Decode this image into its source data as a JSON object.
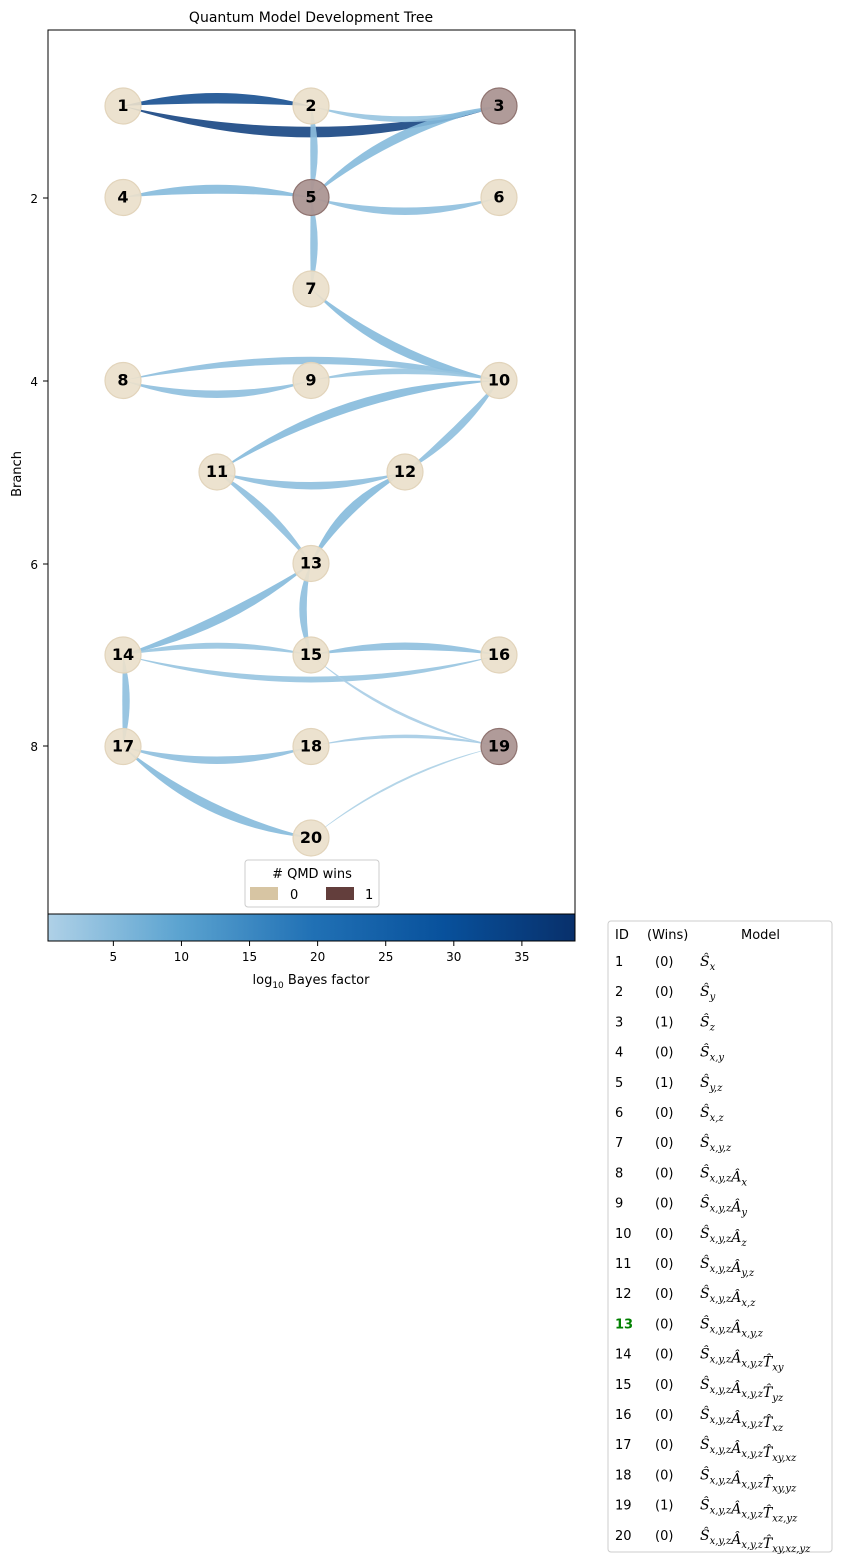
{
  "title": "Quantum Model Development Tree",
  "y_axis": {
    "label": "Branch",
    "ticks": [
      "2",
      "4",
      "6",
      "8"
    ]
  },
  "colorbar": {
    "label_prefix": "log",
    "label_subscript": "10",
    "label_suffix": " Bayes factor",
    "ticks": [
      "5",
      "10",
      "15",
      "20",
      "25",
      "30",
      "35"
    ],
    "range": [
      0.2,
      38.9
    ],
    "colormap": [
      "#afd1e7",
      "#5ba3d0",
      "#2171b5",
      "#08519c",
      "#08306b"
    ]
  },
  "legend": {
    "title": "# QMD wins",
    "items": [
      {
        "label": "0",
        "color": "#d7c5a3"
      },
      {
        "label": "1",
        "color": "#633e3c"
      }
    ]
  },
  "colors": {
    "node_0": "#eadfcb",
    "node_1": "#ac9694",
    "highlight": "#008000"
  },
  "nodes": [
    {
      "id": "1",
      "branch": 1,
      "column": 1,
      "wins": 0
    },
    {
      "id": "2",
      "branch": 1,
      "column": 2,
      "wins": 0
    },
    {
      "id": "3",
      "branch": 1,
      "column": 3,
      "wins": 1
    },
    {
      "id": "4",
      "branch": 2,
      "column": 1,
      "wins": 0
    },
    {
      "id": "5",
      "branch": 2,
      "column": 2,
      "wins": 1
    },
    {
      "id": "6",
      "branch": 2,
      "column": 3,
      "wins": 0
    },
    {
      "id": "7",
      "branch": 3,
      "column": 2,
      "wins": 0
    },
    {
      "id": "8",
      "branch": 4,
      "column": 1,
      "wins": 0
    },
    {
      "id": "9",
      "branch": 4,
      "column": 2,
      "wins": 0
    },
    {
      "id": "10",
      "branch": 4,
      "column": 3,
      "wins": 0
    },
    {
      "id": "11",
      "branch": 5,
      "column": 1.5,
      "wins": 0
    },
    {
      "id": "12",
      "branch": 5,
      "column": 2.5,
      "wins": 0
    },
    {
      "id": "13",
      "branch": 6,
      "column": 2,
      "wins": 0
    },
    {
      "id": "14",
      "branch": 7,
      "column": 1,
      "wins": 0
    },
    {
      "id": "15",
      "branch": 7,
      "column": 2,
      "wins": 0
    },
    {
      "id": "16",
      "branch": 7,
      "column": 3,
      "wins": 0
    },
    {
      "id": "17",
      "branch": 8,
      "column": 1,
      "wins": 0
    },
    {
      "id": "18",
      "branch": 8,
      "column": 2,
      "wins": 0
    },
    {
      "id": "19",
      "branch": 8,
      "column": 3,
      "wins": 1
    },
    {
      "id": "20",
      "branch": 9,
      "column": 2,
      "wins": 0
    }
  ],
  "edges": [
    {
      "from": "1",
      "to": "3",
      "bayes": 36
    },
    {
      "from": "1",
      "to": "2",
      "bayes": 33
    },
    {
      "from": "2",
      "to": "3",
      "bayes": 3
    },
    {
      "from": "2",
      "to": "5",
      "bayes": 4
    },
    {
      "from": "3",
      "to": "5",
      "bayes": 5
    },
    {
      "from": "4",
      "to": "5",
      "bayes": 5
    },
    {
      "from": "5",
      "to": "6",
      "bayes": 4
    },
    {
      "from": "5",
      "to": "7",
      "bayes": 4
    },
    {
      "from": "7",
      "to": "10",
      "bayes": 5
    },
    {
      "from": "8",
      "to": "10",
      "bayes": 4
    },
    {
      "from": "8",
      "to": "9",
      "bayes": 4
    },
    {
      "from": "9",
      "to": "10",
      "bayes": 3
    },
    {
      "from": "10",
      "to": "11",
      "bayes": 5
    },
    {
      "from": "10",
      "to": "12",
      "bayes": 4
    },
    {
      "from": "11",
      "to": "12",
      "bayes": 4
    },
    {
      "from": "11",
      "to": "13",
      "bayes": 4
    },
    {
      "from": "12",
      "to": "13",
      "bayes": 5
    },
    {
      "from": "13",
      "to": "14",
      "bayes": 5
    },
    {
      "from": "13",
      "to": "15",
      "bayes": 4
    },
    {
      "from": "14",
      "to": "15",
      "bayes": 3
    },
    {
      "from": "14",
      "to": "16",
      "bayes": 3
    },
    {
      "from": "15",
      "to": "16",
      "bayes": 4
    },
    {
      "from": "15",
      "to": "19",
      "bayes": 1
    },
    {
      "from": "14",
      "to": "17",
      "bayes": 4
    },
    {
      "from": "17",
      "to": "18",
      "bayes": 4
    },
    {
      "from": "18",
      "to": "19",
      "bayes": 1.5
    },
    {
      "from": "17",
      "to": "20",
      "bayes": 5
    },
    {
      "from": "20",
      "to": "19",
      "bayes": 0.5
    }
  ],
  "table": {
    "headers": {
      "id": "ID",
      "wins": "(Wins)",
      "model": "Model"
    },
    "highlight_id": "13",
    "rows": [
      {
        "id": "1",
        "wins": "(0)",
        "model": [
          [
            "S",
            "x"
          ]
        ]
      },
      {
        "id": "2",
        "wins": "(0)",
        "model": [
          [
            "S",
            "y"
          ]
        ]
      },
      {
        "id": "3",
        "wins": "(1)",
        "model": [
          [
            "S",
            "z"
          ]
        ]
      },
      {
        "id": "4",
        "wins": "(0)",
        "model": [
          [
            "S",
            "x,y"
          ]
        ]
      },
      {
        "id": "5",
        "wins": "(1)",
        "model": [
          [
            "S",
            "y,z"
          ]
        ]
      },
      {
        "id": "6",
        "wins": "(0)",
        "model": [
          [
            "S",
            "x,z"
          ]
        ]
      },
      {
        "id": "7",
        "wins": "(0)",
        "model": [
          [
            "S",
            "x,y,z"
          ]
        ]
      },
      {
        "id": "8",
        "wins": "(0)",
        "model": [
          [
            "S",
            "x,y,z"
          ],
          [
            "A",
            "x"
          ]
        ]
      },
      {
        "id": "9",
        "wins": "(0)",
        "model": [
          [
            "S",
            "x,y,z"
          ],
          [
            "A",
            "y"
          ]
        ]
      },
      {
        "id": "10",
        "wins": "(0)",
        "model": [
          [
            "S",
            "x,y,z"
          ],
          [
            "A",
            "z"
          ]
        ]
      },
      {
        "id": "11",
        "wins": "(0)",
        "model": [
          [
            "S",
            "x,y,z"
          ],
          [
            "A",
            "y,z"
          ]
        ]
      },
      {
        "id": "12",
        "wins": "(0)",
        "model": [
          [
            "S",
            "x,y,z"
          ],
          [
            "A",
            "x,z"
          ]
        ]
      },
      {
        "id": "13",
        "wins": "(0)",
        "model": [
          [
            "S",
            "x,y,z"
          ],
          [
            "A",
            "x,y,z"
          ]
        ]
      },
      {
        "id": "14",
        "wins": "(0)",
        "model": [
          [
            "S",
            "x,y,z"
          ],
          [
            "A",
            "x,y,z"
          ],
          [
            "T",
            "xy"
          ]
        ]
      },
      {
        "id": "15",
        "wins": "(0)",
        "model": [
          [
            "S",
            "x,y,z"
          ],
          [
            "A",
            "x,y,z"
          ],
          [
            "T",
            "yz"
          ]
        ]
      },
      {
        "id": "16",
        "wins": "(0)",
        "model": [
          [
            "S",
            "x,y,z"
          ],
          [
            "A",
            "x,y,z"
          ],
          [
            "T",
            "xz"
          ]
        ]
      },
      {
        "id": "17",
        "wins": "(0)",
        "model": [
          [
            "S",
            "x,y,z"
          ],
          [
            "A",
            "x,y,z"
          ],
          [
            "T",
            "xy,xz"
          ]
        ]
      },
      {
        "id": "18",
        "wins": "(0)",
        "model": [
          [
            "S",
            "x,y,z"
          ],
          [
            "A",
            "x,y,z"
          ],
          [
            "T",
            "xy,yz"
          ]
        ]
      },
      {
        "id": "19",
        "wins": "(1)",
        "model": [
          [
            "S",
            "x,y,z"
          ],
          [
            "A",
            "x,y,z"
          ],
          [
            "T",
            "xz,yz"
          ]
        ]
      },
      {
        "id": "20",
        "wins": "(0)",
        "model": [
          [
            "S",
            "x,y,z"
          ],
          [
            "A",
            "x,y,z"
          ],
          [
            "T",
            "xy,xz,yz"
          ]
        ]
      }
    ]
  }
}
